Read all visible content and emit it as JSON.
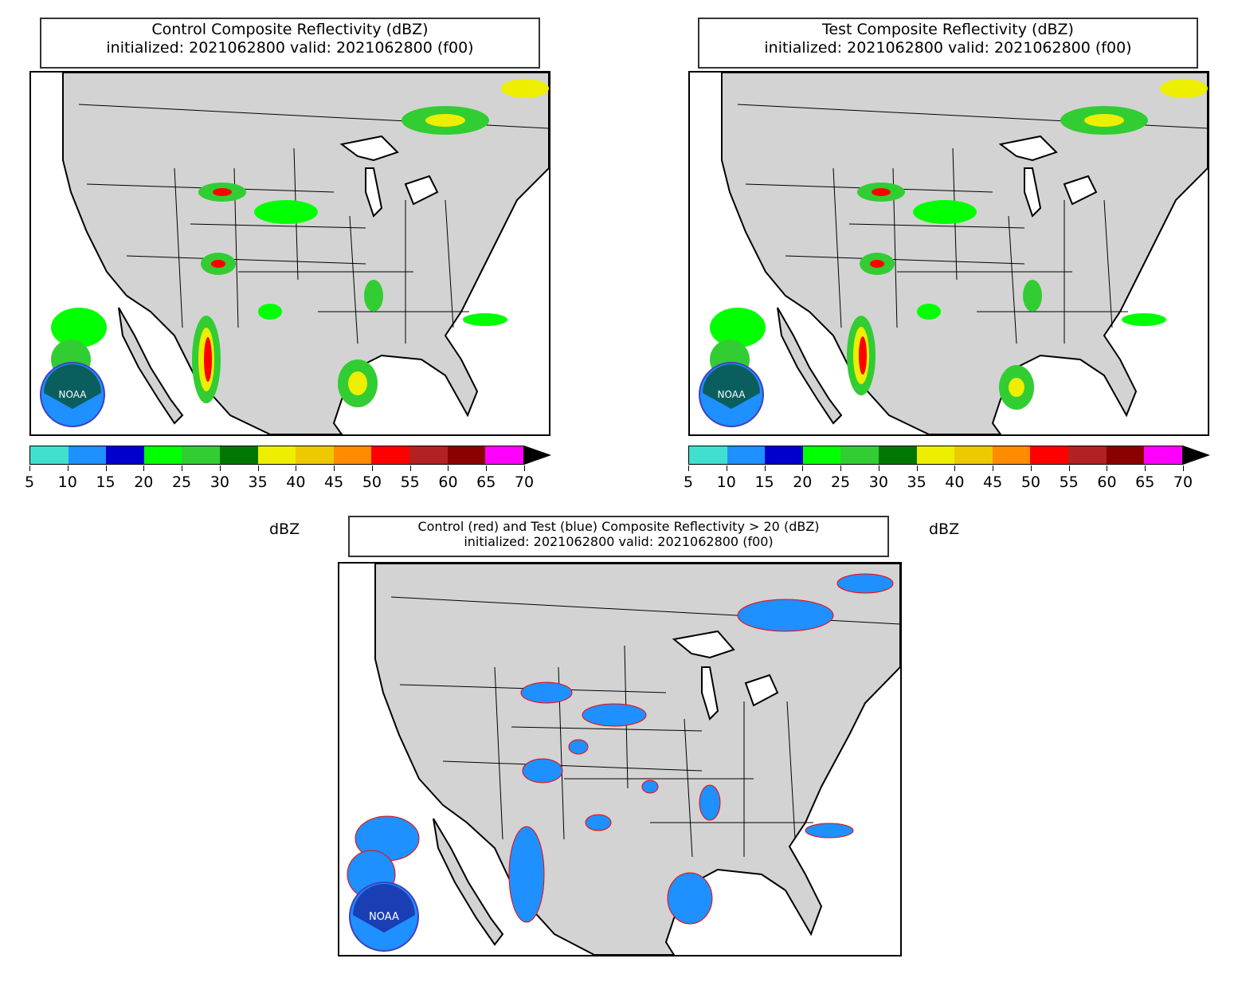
{
  "panels": {
    "control": {
      "title_line1": "Control Composite Reflectivity (dBZ)",
      "title_line2": "initialized: 2021062800 valid: 2021062800 (f00)",
      "colorbar_label": "dBZ"
    },
    "test": {
      "title_line1": "Test Composite Reflectivity (dBZ)",
      "title_line2": "initialized: 2021062800 valid: 2021062800 (f00)",
      "colorbar_label": "dBZ"
    },
    "diff": {
      "title_line1": "Control (red) and Test (blue) Composite Reflectivity > 20 (dBZ)",
      "title_line2": "initialized: 2021062800 valid: 2021062800 (f00)"
    }
  },
  "colorbar": {
    "ticks": [
      "5",
      "10",
      "15",
      "20",
      "25",
      "30",
      "35",
      "40",
      "45",
      "50",
      "55",
      "60",
      "65",
      "70"
    ],
    "colors": [
      "#40e0d0",
      "#1e90ff",
      "#0000cd",
      "#00ff00",
      "#32cd32",
      "#007800",
      "#eeee00",
      "#eec900",
      "#ff8c00",
      "#ff0000",
      "#b22222",
      "#8b0000",
      "#ff00ff"
    ],
    "extend_color": "#000000"
  },
  "colors": {
    "land": "#d3d3d3",
    "water": "#ffffff",
    "control": "#ff0000",
    "test": "#1e90ff"
  },
  "logo": {
    "text": "NOAA"
  }
}
